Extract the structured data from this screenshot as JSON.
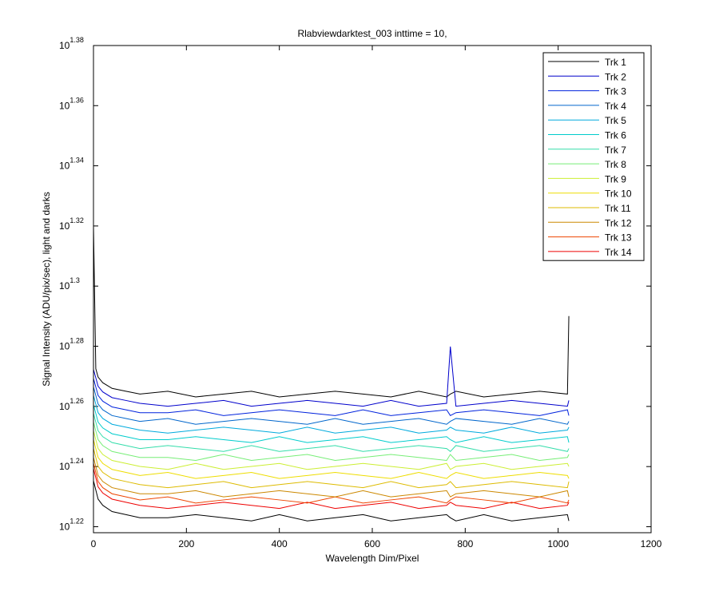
{
  "chart_data": {
    "type": "line",
    "title": "Rlabviewdarktest_003 inttime = 10,",
    "xlabel": "Wavelength Dim/Pixel",
    "ylabel": "Signal Intensity (ADU/pix/sec), light and darks",
    "yscale": "log",
    "grid": false,
    "legend_position": "northeast",
    "xlim": [
      0,
      1200
    ],
    "xticks": [
      0,
      200,
      400,
      600,
      800,
      1000,
      1200
    ],
    "ylim": [
      16.52,
      23.988
    ],
    "yticks": [
      {
        "value": 16.596,
        "label": "10^1.22"
      },
      {
        "value": 17.378,
        "label": "10^1.24"
      },
      {
        "value": 18.197,
        "label": "10^1.26"
      },
      {
        "value": 19.055,
        "label": "10^1.28"
      },
      {
        "value": 19.953,
        "label": "10^1.3"
      },
      {
        "value": 20.893,
        "label": "10^1.32"
      },
      {
        "value": 21.878,
        "label": "10^1.34"
      },
      {
        "value": 22.909,
        "label": "10^1.36"
      },
      {
        "value": 23.988,
        "label": "10^1.38"
      }
    ],
    "x": [
      0,
      5,
      10,
      20,
      40,
      70,
      100,
      160,
      220,
      280,
      340,
      400,
      460,
      520,
      580,
      640,
      700,
      760,
      768,
      780,
      840,
      900,
      960,
      1020,
      1023
    ],
    "series": [
      {
        "name": "Trk 1",
        "color": "#000000",
        "values": [
          17.19,
          17.07,
          16.95,
          16.87,
          16.79,
          16.75,
          16.71,
          16.71,
          16.75,
          16.71,
          16.67,
          16.75,
          16.67,
          16.71,
          16.75,
          16.67,
          16.71,
          16.75,
          16.71,
          16.67,
          16.75,
          16.67,
          16.71,
          16.75,
          16.67
        ]
      },
      {
        "name": "Trk 2",
        "color": "#0000cc",
        "values": [
          18.72,
          18.6,
          18.48,
          18.4,
          18.32,
          18.28,
          18.24,
          18.2,
          18.24,
          18.28,
          18.2,
          18.24,
          18.28,
          18.24,
          18.2,
          18.28,
          18.2,
          18.24,
          19.05,
          18.2,
          18.24,
          18.28,
          18.24,
          18.2,
          18.28
        ]
      },
      {
        "name": "Trk 3",
        "color": "#0022dd",
        "values": [
          18.59,
          18.47,
          18.35,
          18.27,
          18.19,
          18.15,
          18.11,
          18.11,
          18.15,
          18.07,
          18.11,
          18.15,
          18.11,
          18.07,
          18.15,
          18.07,
          18.11,
          18.15,
          18.07,
          18.11,
          18.15,
          18.11,
          18.07,
          18.15,
          18.07
        ]
      },
      {
        "name": "Trk 4",
        "color": "#0066cc",
        "values": [
          18.47,
          18.35,
          18.23,
          18.15,
          18.07,
          18.03,
          17.99,
          18.03,
          17.95,
          17.99,
          18.03,
          17.99,
          17.95,
          18.03,
          17.95,
          17.99,
          18.03,
          17.95,
          17.99,
          18.03,
          17.99,
          17.95,
          18.03,
          17.95,
          17.99
        ]
      },
      {
        "name": "Trk 5",
        "color": "#00aadd",
        "values": [
          18.35,
          18.23,
          18.11,
          18.03,
          17.95,
          17.91,
          17.87,
          17.83,
          17.87,
          17.91,
          17.87,
          17.83,
          17.91,
          17.83,
          17.87,
          17.91,
          17.83,
          17.87,
          17.91,
          17.87,
          17.83,
          17.91,
          17.83,
          17.87,
          17.91
        ]
      },
      {
        "name": "Trk 6",
        "color": "#00cccc",
        "values": [
          18.22,
          18.1,
          17.98,
          17.9,
          17.82,
          17.78,
          17.74,
          17.74,
          17.78,
          17.74,
          17.7,
          17.78,
          17.7,
          17.74,
          17.78,
          17.7,
          17.74,
          17.78,
          17.74,
          17.7,
          17.78,
          17.7,
          17.74,
          17.78,
          17.7
        ]
      },
      {
        "name": "Trk 7",
        "color": "#33ddaa",
        "values": [
          18.1,
          17.98,
          17.86,
          17.78,
          17.7,
          17.66,
          17.62,
          17.66,
          17.62,
          17.58,
          17.66,
          17.58,
          17.62,
          17.66,
          17.58,
          17.62,
          17.66,
          17.62,
          17.58,
          17.66,
          17.58,
          17.62,
          17.66,
          17.58,
          17.62
        ]
      },
      {
        "name": "Trk 8",
        "color": "#77ee77",
        "values": [
          17.98,
          17.86,
          17.74,
          17.66,
          17.58,
          17.54,
          17.5,
          17.5,
          17.46,
          17.54,
          17.46,
          17.5,
          17.54,
          17.46,
          17.5,
          17.54,
          17.5,
          17.46,
          17.54,
          17.46,
          17.5,
          17.54,
          17.46,
          17.5,
          17.54
        ]
      },
      {
        "name": "Trk 9",
        "color": "#ccee33",
        "values": [
          17.86,
          17.74,
          17.62,
          17.54,
          17.46,
          17.42,
          17.38,
          17.34,
          17.42,
          17.34,
          17.38,
          17.42,
          17.34,
          17.38,
          17.42,
          17.38,
          17.34,
          17.42,
          17.34,
          17.38,
          17.42,
          17.34,
          17.38,
          17.42,
          17.38
        ]
      },
      {
        "name": "Trk 10",
        "color": "#eedd00",
        "values": [
          17.74,
          17.62,
          17.5,
          17.42,
          17.34,
          17.3,
          17.26,
          17.3,
          17.22,
          17.26,
          17.3,
          17.22,
          17.26,
          17.3,
          17.26,
          17.22,
          17.3,
          17.22,
          17.26,
          17.3,
          17.22,
          17.26,
          17.3,
          17.26,
          17.22
        ]
      },
      {
        "name": "Trk 11",
        "color": "#ddbb00",
        "values": [
          17.62,
          17.5,
          17.38,
          17.3,
          17.22,
          17.18,
          17.14,
          17.1,
          17.14,
          17.18,
          17.1,
          17.14,
          17.18,
          17.14,
          17.1,
          17.18,
          17.1,
          17.14,
          17.18,
          17.1,
          17.14,
          17.18,
          17.14,
          17.1,
          17.18
        ]
      },
      {
        "name": "Trk 12",
        "color": "#cc8800",
        "values": [
          17.5,
          17.38,
          17.26,
          17.18,
          17.1,
          17.06,
          17.02,
          17.02,
          17.06,
          16.98,
          17.02,
          17.06,
          17.02,
          16.98,
          17.06,
          16.98,
          17.02,
          17.06,
          16.98,
          17.02,
          17.06,
          17.02,
          16.98,
          17.06,
          16.98
        ]
      },
      {
        "name": "Trk 13",
        "color": "#ee4400",
        "values": [
          17.42,
          17.3,
          17.18,
          17.1,
          17.02,
          16.98,
          16.94,
          16.98,
          16.9,
          16.94,
          16.98,
          16.94,
          16.9,
          16.98,
          16.9,
          16.94,
          16.98,
          16.9,
          16.94,
          16.98,
          16.94,
          16.9,
          16.98,
          16.9,
          16.94
        ]
      },
      {
        "name": "Trk 14",
        "color": "#ee0000",
        "values": [
          17.35,
          17.23,
          17.11,
          17.03,
          16.95,
          16.91,
          16.87,
          16.83,
          16.87,
          16.91,
          16.87,
          16.83,
          16.91,
          16.83,
          16.87,
          16.91,
          16.83,
          16.87,
          16.91,
          16.87,
          16.83,
          16.91,
          16.83,
          16.87,
          16.91
        ]
      },
      {
        "color": "#000000",
        "values": [
          20.89,
          18.73,
          18.61,
          18.53,
          18.45,
          18.41,
          18.37,
          18.41,
          18.33,
          18.37,
          18.41,
          18.33,
          18.37,
          18.41,
          18.37,
          18.33,
          18.41,
          18.33,
          18.37,
          18.41,
          18.33,
          18.37,
          18.41,
          18.37,
          19.5
        ]
      }
    ]
  }
}
